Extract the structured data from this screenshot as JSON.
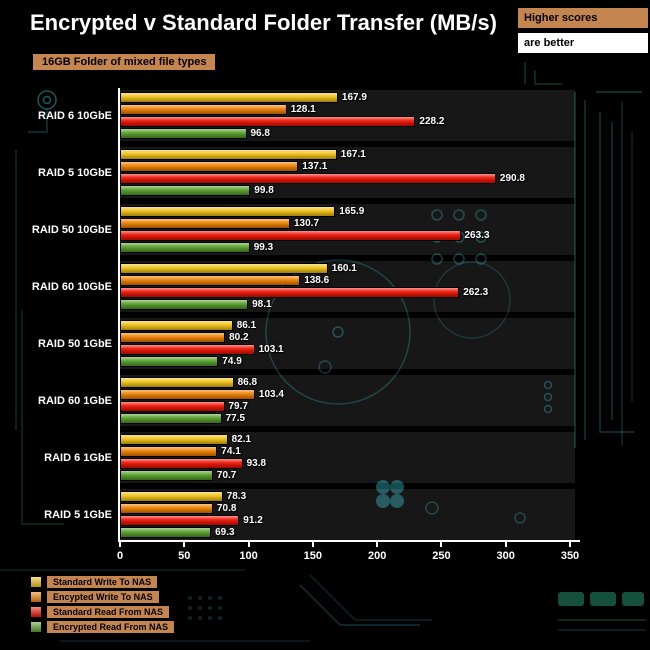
{
  "header": {
    "title": "Encrypted v Standard Folder Transfer (MB/s)",
    "subtitle": "16GB Folder of mixed file types",
    "note_line1": "Higher scores",
    "note_line2": "are better"
  },
  "colors": {
    "accent_tan": "#c5854e",
    "background": "#000000",
    "circuit_teal": "#1b7077",
    "axis_white": "#ffffff"
  },
  "chart_data": {
    "type": "bar",
    "orientation": "horizontal",
    "title": "Encrypted v Standard Folder Transfer (MB/s)",
    "xlabel": "",
    "ylabel": "",
    "xlim": [
      0,
      350
    ],
    "xticks": [
      0,
      50,
      100,
      150,
      200,
      250,
      300,
      350
    ],
    "grid": false,
    "legend_position": "bottom-left",
    "categories": [
      "RAID 6 10GbE",
      "RAID 5 10GbE",
      "RAID 50 10GbE",
      "RAID 60 10GbE",
      "RAID 50 1GbE",
      "RAID 60 1GbE",
      "RAID 6 1GbE",
      "RAID 5 1GbE"
    ],
    "series": [
      {
        "name": "Standard Write To NAS",
        "color": "#f2c318",
        "values": [
          167.9,
          167.1,
          165.9,
          160.1,
          86.1,
          86.8,
          82.1,
          78.3
        ]
      },
      {
        "name": "Encypted Write To NAS",
        "color": "#ef8000",
        "values": [
          128.1,
          137.1,
          130.7,
          138.6,
          80.2,
          103.4,
          74.1,
          70.8
        ]
      },
      {
        "name": "Standard Read From NAS",
        "color": "#ee1405",
        "values": [
          228.2,
          290.8,
          263.3,
          262.3,
          103.1,
          79.7,
          93.8,
          91.2
        ]
      },
      {
        "name": "Encrypted Read From NAS",
        "color": "#579f2b",
        "values": [
          96.8,
          99.8,
          99.3,
          98.1,
          74.9,
          77.5,
          70.7,
          69.3
        ]
      }
    ]
  }
}
